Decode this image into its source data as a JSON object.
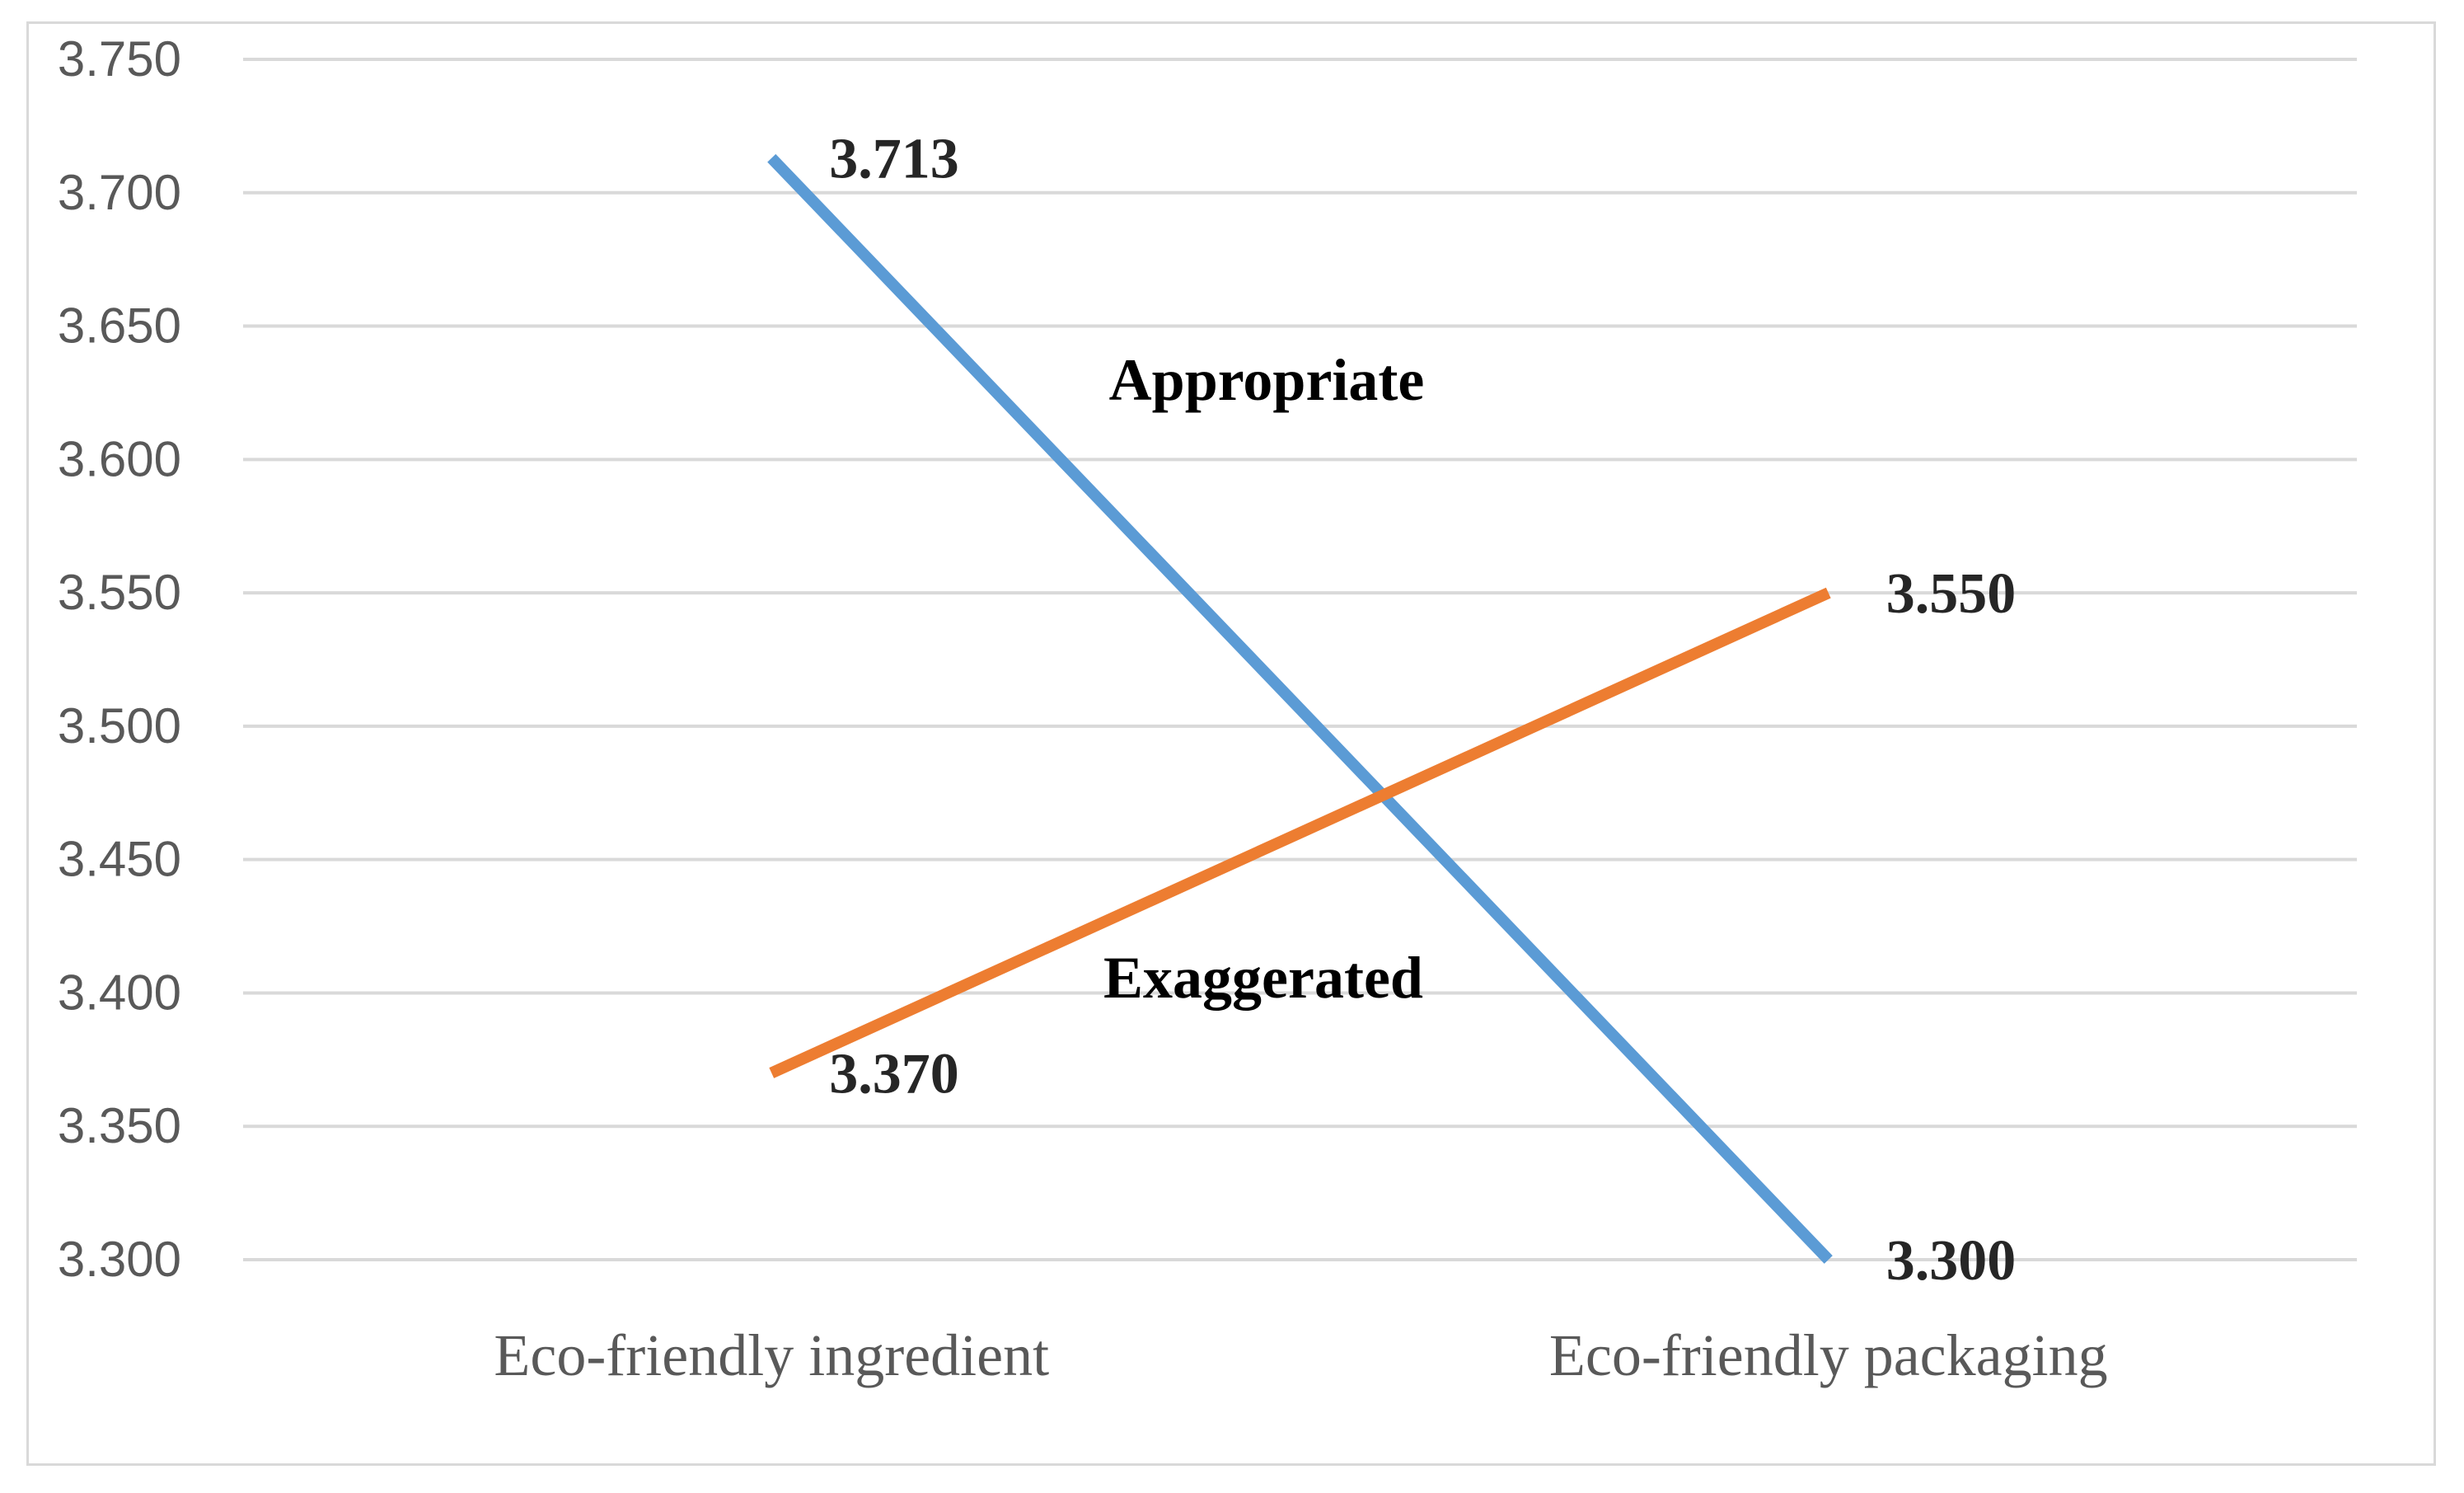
{
  "chart_data": {
    "type": "line",
    "title": "",
    "xlabel": "",
    "ylabel": "",
    "categories": [
      "Eco-friendly ingredient",
      "Eco-friendly packaging"
    ],
    "ylim": [
      3.3,
      3.75
    ],
    "yticks": [
      "3.750",
      "3.700",
      "3.650",
      "3.600",
      "3.550",
      "3.500",
      "3.450",
      "3.400",
      "3.350",
      "3.300"
    ],
    "grid": true,
    "legend": "none",
    "series": [
      {
        "name": "Appropriate",
        "color": "#5b9bd5",
        "values": [
          3.713,
          3.3
        ],
        "labels": [
          "3.713",
          "3.300"
        ]
      },
      {
        "name": "Exaggerated",
        "color": "#ed7d31",
        "values": [
          3.37,
          3.55
        ],
        "labels": [
          "3.370",
          "3.550"
        ]
      }
    ]
  }
}
